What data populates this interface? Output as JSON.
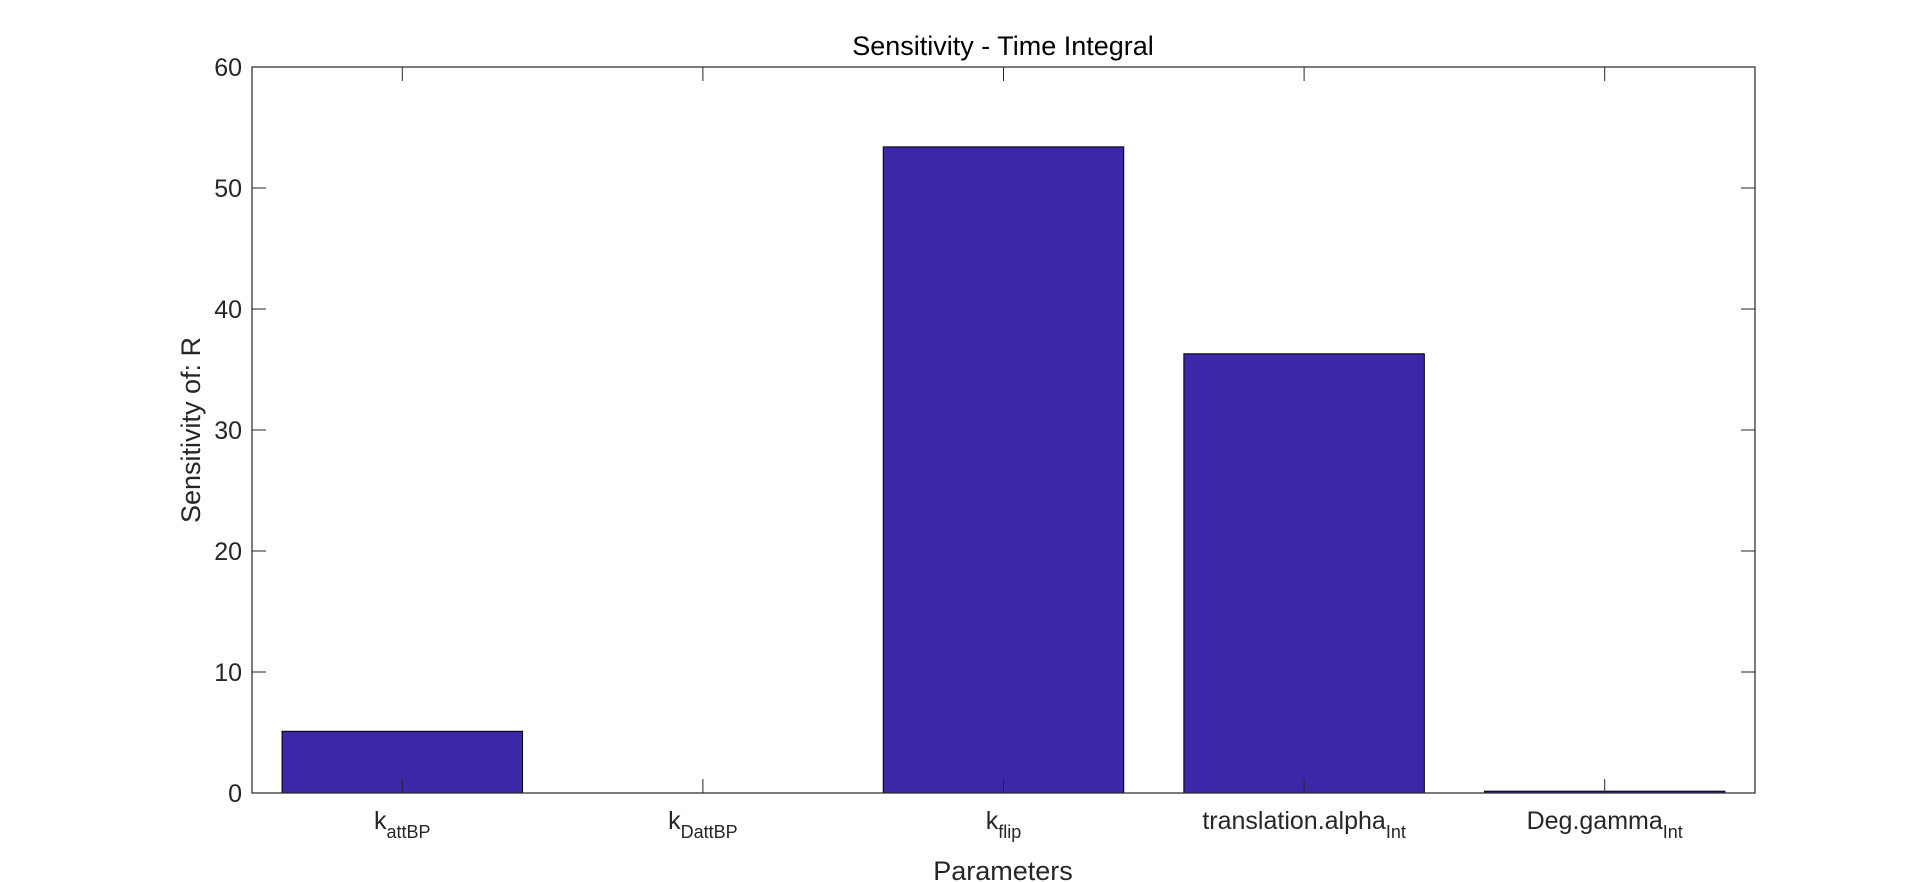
{
  "chart_data": {
    "type": "bar",
    "title": "Sensitivity - Time Integral",
    "xlabel": "Parameters",
    "ylabel": "Sensitivity of: R",
    "categories": [
      {
        "base": "k",
        "sub": "attBP"
      },
      {
        "base": "k",
        "sub": "DattBP"
      },
      {
        "base": "k",
        "sub": "flip"
      },
      {
        "base": "translation.alpha",
        "sub": "Int"
      },
      {
        "base": "Deg.gamma",
        "sub": "Int"
      }
    ],
    "values": [
      5.1,
      0,
      53.4,
      36.3,
      0.15
    ],
    "ylim": [
      0,
      60
    ],
    "yticks": [
      0,
      10,
      20,
      30,
      40,
      50,
      60
    ],
    "bar_color": "#3D26A8",
    "edge_color": "#000000",
    "grid": false
  }
}
